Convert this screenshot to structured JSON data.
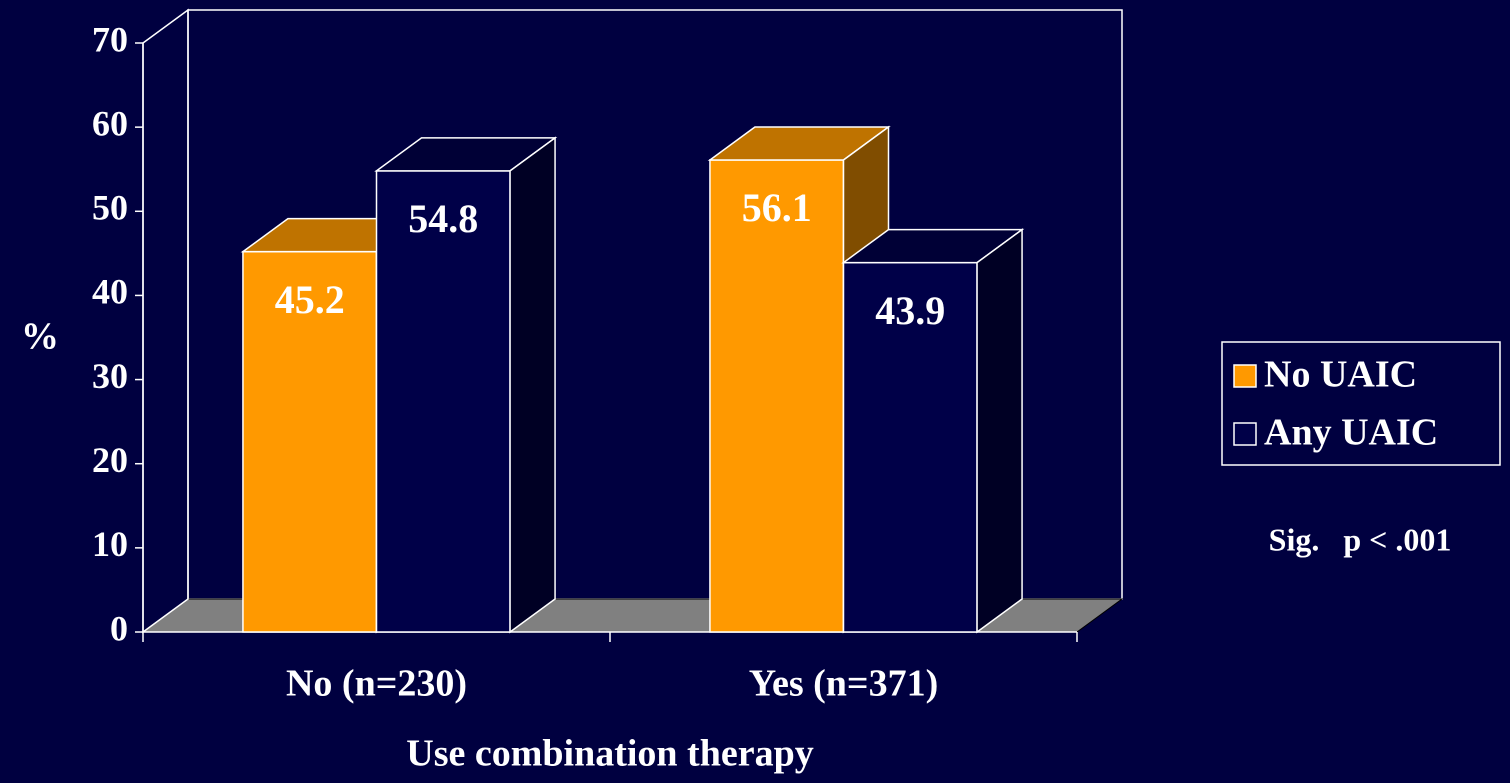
{
  "chart_data": {
    "type": "bar3d",
    "xlabel": "Use combination therapy",
    "ylabel": "%",
    "categories": [
      "No (n=230)",
      "Yes (n=371)"
    ],
    "series": [
      {
        "name": "No UAIC",
        "color": "#FF9900",
        "values": [
          45.2,
          56.1
        ]
      },
      {
        "name": "Any UAIC",
        "color": "#000048",
        "values": [
          54.8,
          43.9
        ]
      }
    ],
    "ylim": [
      0,
      70
    ],
    "yticks": [
      0,
      10,
      20,
      30,
      40,
      50,
      60,
      70
    ],
    "grid": false,
    "legend": "right",
    "annotation": "Sig.   p < .001"
  }
}
